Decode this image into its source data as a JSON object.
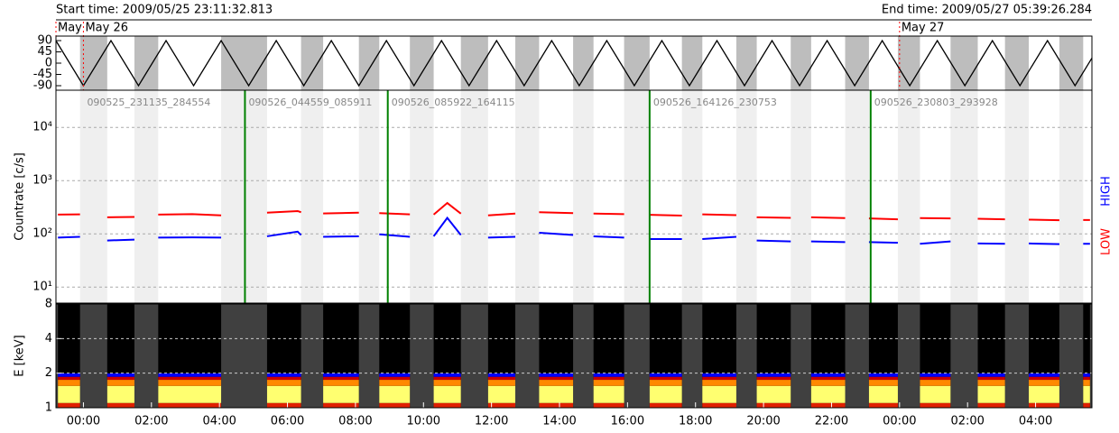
{
  "header": {
    "start": "Start time: 2009/05/25 23:11:32.813",
    "end": "End time: 2009/05/27 05:39:26.284"
  },
  "chart_data": [
    {
      "type": "line",
      "xlim": [
        -0.808,
        29.657
      ],
      "ylim": [
        -108,
        108
      ],
      "yticks": [
        90,
        45,
        0,
        -45,
        -90
      ],
      "color": "#000000",
      "x": [
        -0.81,
        0,
        0.81,
        1.62,
        2.43,
        3.24,
        4.05,
        4.86,
        5.67,
        6.48,
        7.29,
        8.1,
        8.91,
        9.72,
        10.53,
        11.34,
        12.15,
        12.96,
        13.77,
        14.58,
        15.39,
        16.2,
        17.01,
        17.82,
        18.63,
        19.44,
        20.25,
        21.06,
        21.87,
        22.68,
        23.49,
        24.3,
        25.11,
        25.92,
        26.73,
        27.54,
        28.35,
        29.16,
        29.66
      ],
      "values": [
        90,
        -90,
        90,
        -90,
        90,
        -90,
        90,
        -90,
        90,
        -90,
        90,
        -90,
        90,
        -90,
        90,
        -90,
        90,
        -90,
        90,
        -90,
        90,
        -90,
        90,
        -90,
        90,
        -90,
        90,
        -90,
        90,
        -90,
        90,
        -90,
        90,
        -90,
        90,
        -90,
        90,
        -90,
        21
      ],
      "day_labels": [
        {
          "value": -0.808,
          "label": "May"
        },
        {
          "value": 0,
          "label": "May 26"
        },
        {
          "value": 24,
          "label": "May 27"
        }
      ]
    },
    {
      "type": "line",
      "log": true,
      "ylabel": "Countrate [c/s]",
      "xlim": [
        -0.808,
        29.657
      ],
      "ylim": [
        5,
        50000
      ],
      "grid": true,
      "yticks": [
        {
          "value": 10,
          "label": "10¹"
        },
        {
          "value": 100,
          "label": "10²"
        },
        {
          "value": 1000,
          "label": "10³"
        },
        {
          "value": 10000,
          "label": "10⁴"
        }
      ],
      "x": [
        -0.75,
        -0.1,
        0.3,
        0.7,
        1.5,
        1.85,
        2.2,
        3.2,
        4.05,
        4.7,
        5.4,
        6.3,
        6.4,
        6.7,
        7.05,
        8.1,
        8.4,
        8.7,
        9.6,
        9.95,
        10.3,
        10.7,
        11.1,
        11.5,
        11.9,
        12.7,
        13.05,
        13.4,
        14.4,
        14.7,
        15.0,
        15.9,
        16.3,
        16.65,
        17.6,
        17.9,
        18.2,
        19.2,
        19.5,
        19.8,
        20.8,
        21.1,
        21.4,
        22.4,
        22.75,
        23.1,
        23.95,
        24.3,
        24.6,
        25.5,
        25.9,
        26.3,
        27.1,
        27.45,
        27.8,
        28.7,
        29.05,
        29.4,
        29.6
      ],
      "series": [
        {
          "name": "LOW",
          "color": "#ff0000",
          "values": [
            230,
            232,
            null,
            205,
            208,
            null,
            230,
            235,
            222,
            null,
            250,
            268,
            255,
            null,
            242,
            250,
            null,
            245,
            232,
            null,
            230,
            380,
            240,
            null,
            222,
            240,
            null,
            255,
            245,
            null,
            240,
            235,
            null,
            228,
            220,
            null,
            232,
            225,
            null,
            205,
            200,
            null,
            205,
            198,
            null,
            195,
            188,
            null,
            198,
            195,
            null,
            192,
            188,
            null,
            185,
            180,
            null,
            182,
            182
          ]
        },
        {
          "name": "HIGH",
          "color": "#0000ff",
          "values": [
            85,
            88,
            null,
            75,
            78,
            null,
            85,
            86,
            85,
            null,
            90,
            110,
            95,
            null,
            88,
            90,
            null,
            98,
            88,
            null,
            90,
            200,
            95,
            null,
            85,
            88,
            null,
            105,
            95,
            null,
            90,
            85,
            null,
            80,
            80,
            null,
            80,
            88,
            null,
            75,
            72,
            null,
            72,
            70,
            null,
            70,
            68,
            null,
            65,
            72,
            null,
            66,
            65,
            null,
            66,
            64,
            null,
            65,
            65
          ]
        }
      ],
      "boundaries": [
        4.75,
        8.95,
        16.65,
        23.15
      ],
      "boundary_color": "#008000",
      "annotations": [
        {
          "x": 0,
          "text": "090525_231135_284554"
        },
        {
          "x": 4.75,
          "text": "090526_044559_085911"
        },
        {
          "x": 8.95,
          "text": "090526_085922_164115"
        },
        {
          "x": 16.65,
          "text": "090526_164126_230753"
        },
        {
          "x": 23.15,
          "text": "090526_230803_293928"
        }
      ]
    },
    {
      "type": "spectrogram",
      "log": true,
      "ylabel": "E [keV]",
      "xlim": [
        -0.808,
        29.657
      ],
      "ylim": [
        1,
        8
      ],
      "yticks": [
        1,
        2,
        4,
        8
      ],
      "xticks": [
        {
          "value": 0,
          "label": "00:00"
        },
        {
          "value": 2,
          "label": "02:00"
        },
        {
          "value": 4,
          "label": "04:00"
        },
        {
          "value": 6,
          "label": "06:00"
        },
        {
          "value": 8,
          "label": "08:00"
        },
        {
          "value": 10,
          "label": "10:00"
        },
        {
          "value": 12,
          "label": "12:00"
        },
        {
          "value": 14,
          "label": "14:00"
        },
        {
          "value": 16,
          "label": "16:00"
        },
        {
          "value": 18,
          "label": "18:00"
        },
        {
          "value": 20,
          "label": "20:00"
        },
        {
          "value": 22,
          "label": "22:00"
        },
        {
          "value": 24,
          "label": "00:00"
        },
        {
          "value": 26,
          "label": "02:00"
        },
        {
          "value": 28,
          "label": "04:00"
        }
      ]
    }
  ]
}
